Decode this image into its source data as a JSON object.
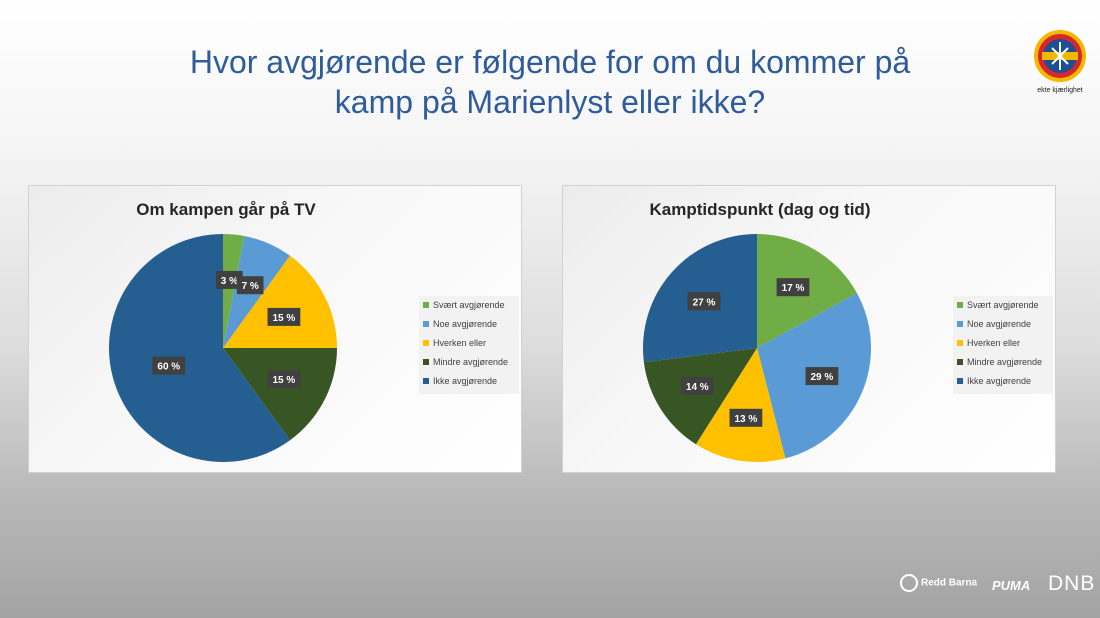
{
  "header": {
    "title_line1": "Hvor avgjørende er følgende for om du kommer på",
    "title_line2": "kamp på Marienlyst eller ikke?"
  },
  "club_logo": {
    "tagline": "ekte kjærlighet"
  },
  "sponsors": {
    "redd_barna": "Redd Barna",
    "puma": "PUMA",
    "dnb": "DNB"
  },
  "chart_data": [
    {
      "type": "pie",
      "title": "Om kampen går på TV",
      "categories": [
        "Svært avgjørende",
        "Noe avgjørende",
        "Hverken eller",
        "Mindre avgjørende",
        "Ikke avgjørende"
      ],
      "values": [
        3,
        7,
        15,
        15,
        60
      ],
      "labels": [
        "3 %",
        "7 %",
        "15 %",
        "15 %",
        "60 %"
      ],
      "colors": [
        "#70ad47",
        "#5b9bd5",
        "#ffc000",
        "#375623",
        "#255e91"
      ],
      "legend": "right"
    },
    {
      "type": "pie",
      "title": "Kamptidspunkt (dag og tid)",
      "categories": [
        "Svært avgjørende",
        "Noe avgjørende",
        "Hverken eller",
        "Mindre avgjørende",
        "Ikke avgjørende"
      ],
      "values": [
        17,
        29,
        13,
        14,
        27
      ],
      "labels": [
        "17 %",
        "29 %",
        "13 %",
        "14 %",
        "27 %"
      ],
      "colors": [
        "#70ad47",
        "#5b9bd5",
        "#ffc000",
        "#375623",
        "#255e91"
      ],
      "legend": "right"
    }
  ]
}
